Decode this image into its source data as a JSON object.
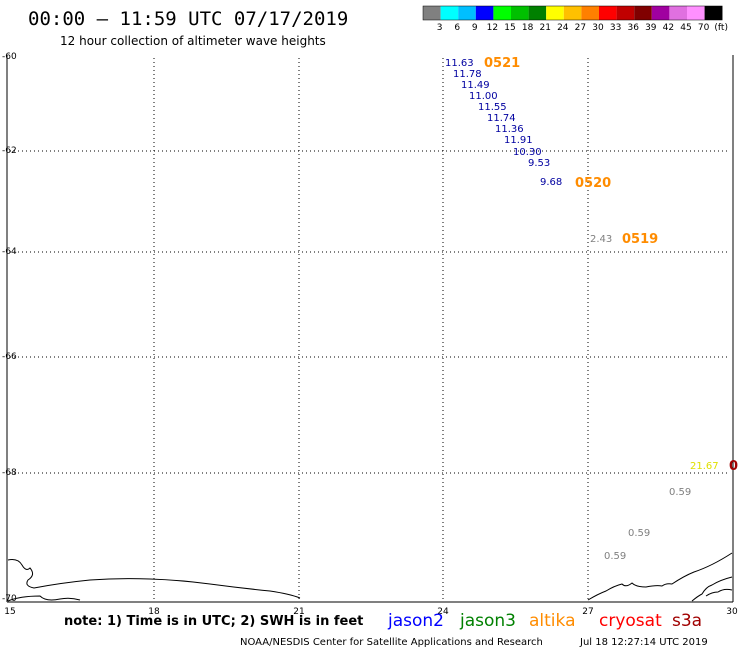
{
  "header": {
    "title": "00:00 – 11:59 UTC 07/17/2019",
    "subtitle": "12 hour collection of altimeter wave heights"
  },
  "color_scale": {
    "labels": [
      "3",
      "6",
      "9",
      "12",
      "15",
      "18",
      "21",
      "24",
      "27",
      "30",
      "33",
      "36",
      "39",
      "42",
      "45",
      "70",
      "(ft)"
    ],
    "colors": [
      "#808080",
      "#00ffff",
      "#00bfff",
      "#0000ff",
      "#00ff00",
      "#00c000",
      "#008000",
      "#ffff00",
      "#ffc000",
      "#ff8000",
      "#ff0000",
      "#c00000",
      "#800000",
      "#a000a0",
      "#e070e0",
      "#ff90ff",
      "#000000"
    ]
  },
  "map": {
    "lat_labels": [
      "-60",
      "-62",
      "-64",
      "-66",
      "-68",
      "-70"
    ],
    "lon_labels": [
      "15",
      "18",
      "21",
      "24",
      "27",
      "30"
    ]
  },
  "wave_heights": [
    {
      "value": "11.63",
      "mission": "jason2",
      "color": "#0000a0"
    },
    {
      "value": "11.78",
      "mission": "jason2",
      "color": "#0000a0"
    },
    {
      "value": "11.49",
      "mission": "jason2",
      "color": "#0000a0"
    },
    {
      "value": "11.00",
      "mission": "jason2",
      "color": "#0000a0"
    },
    {
      "value": "11.55",
      "mission": "jason2",
      "color": "#0000a0"
    },
    {
      "value": "11.74",
      "mission": "jason2",
      "color": "#0000a0"
    },
    {
      "value": "11.36",
      "mission": "jason2",
      "color": "#0000a0"
    },
    {
      "value": "11.91",
      "mission": "jason2",
      "color": "#0000a0"
    },
    {
      "value": "10.30",
      "mission": "jason2",
      "color": "#0000a0"
    },
    {
      "value": "9.53",
      "mission": "jason2",
      "color": "#0000a0"
    },
    {
      "value": "9.68",
      "mission": "jason2",
      "color": "#0000a0"
    },
    {
      "value": "2.43",
      "mission": "unknown",
      "color": "#808080"
    },
    {
      "value": "21.67",
      "mission": "unknown",
      "color": "#e0e000"
    },
    {
      "value": "0.59",
      "mission": "unknown",
      "color": "#808080"
    },
    {
      "value": "0.59",
      "mission": "unknown",
      "color": "#808080"
    },
    {
      "value": "0.59",
      "mission": "unknown",
      "color": "#808080"
    }
  ],
  "time_labels": [
    {
      "text": "0521",
      "color": "#ff8c00"
    },
    {
      "text": "0520",
      "color": "#ff8c00"
    },
    {
      "text": "0519",
      "color": "#ff8c00"
    },
    {
      "text": "0",
      "color": "#a00000"
    }
  ],
  "footer": {
    "note": "note: 1) Time is in UTC; 2) SWH is in feet",
    "missions": [
      {
        "name": "jason2",
        "color": "#0000ff"
      },
      {
        "name": "jason3",
        "color": "#008000"
      },
      {
        "name": "altika",
        "color": "#ff8c00"
      },
      {
        "name": "cryosat",
        "color": "#ff0000"
      },
      {
        "name": "s3a",
        "color": "#a00000"
      }
    ],
    "credit": "NOAA/NESDIS Center for Satellite Applications and Research",
    "timestamp": "Jul 18 12:27:14 UTC 2019"
  }
}
